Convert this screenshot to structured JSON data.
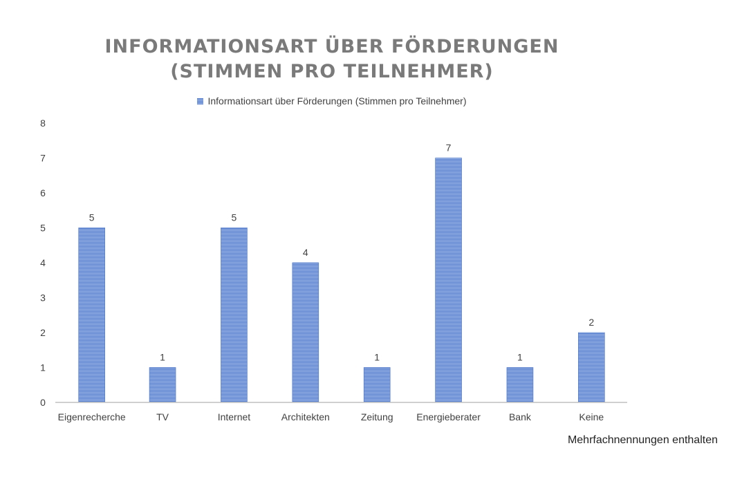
{
  "chart_data": {
    "type": "bar",
    "title_line1": "INFORMATIONSART ÜBER FÖRDERUNGEN",
    "title_line2": "(STIMMEN PRO TEILNEHMER)",
    "legend": [
      "Informationsart über Förderungen (Stimmen pro Teilnehmer)"
    ],
    "legend_position": "top",
    "categories": [
      "Eigenrecherche",
      "TV",
      "Internet",
      "Architekten",
      "Zeitung",
      "Energieberater",
      "Bank",
      "Keine"
    ],
    "series": [
      {
        "name": "Informationsart über Förderungen (Stimmen pro Teilnehmer)",
        "values": [
          5,
          1,
          5,
          4,
          1,
          7,
          1,
          2
        ]
      }
    ],
    "ylim": [
      0,
      8
    ],
    "yticks": [
      0,
      1,
      2,
      3,
      4,
      5,
      6,
      7,
      8
    ],
    "grid": false,
    "bar_color": "#4a74c9",
    "bar_stripe_color": "#a8c0ea"
  },
  "note": "Mehrfachnennungen enthalten"
}
